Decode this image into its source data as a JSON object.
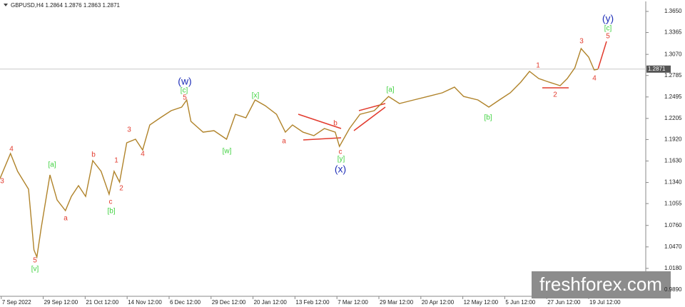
{
  "chart_data": {
    "type": "line",
    "title": "GBPUSD,H4 1.2864 1.2876 1.2863 1.2871",
    "x": [
      -0.03,
      0.22,
      0.39,
      0.65,
      0.78,
      0.85,
      0.95,
      1.16,
      1.33,
      1.53,
      1.67,
      1.84,
      2.01,
      2.18,
      2.38,
      2.57,
      2.69,
      2.82,
      2.99,
      3.2,
      3.37,
      3.54,
      3.79,
      4.05,
      4.3,
      4.42,
      4.52,
      4.81,
      5.07,
      5.37,
      5.58,
      5.83,
      6.05,
      6.29,
      6.56,
      6.77,
      6.94,
      7.19,
      7.45,
      7.7,
      7.96,
      8.06,
      8.3,
      8.55,
      8.89,
      9.23,
      9.49,
      9.83,
      10.17,
      10.51,
      10.8,
      11.02,
      11.36,
      11.62,
      11.87,
      12.13,
      12.38,
      12.59,
      12.81,
      13.06,
      13.32,
      13.49,
      13.67,
      13.82,
      14.0,
      14.13,
      14.22
    ],
    "values": [
      1.1393,
      1.1731,
      1.149,
      1.1249,
      1.0429,
      1.0333,
      1.0718,
      1.1442,
      1.1104,
      1.096,
      1.1152,
      1.1297,
      1.1152,
      1.1635,
      1.149,
      1.1181,
      1.149,
      1.1345,
      1.1876,
      1.1924,
      1.1779,
      1.2117,
      1.2213,
      1.231,
      1.2358,
      1.2454,
      1.2165,
      1.202,
      1.204,
      1.1924,
      1.2261,
      1.2213,
      1.2454,
      1.2377,
      1.2261,
      1.202,
      1.2117,
      1.202,
      1.1972,
      1.2069,
      1.202,
      1.1827,
      1.2069,
      1.2261,
      1.231,
      1.2502,
      1.2406,
      1.2454,
      1.2502,
      1.2551,
      1.2628,
      1.2502,
      1.2454,
      1.2358,
      1.2454,
      1.2551,
      1.2695,
      1.284,
      1.2744,
      1.2695,
      1.2647,
      1.2744,
      1.2888,
      1.3149,
      1.3033,
      1.2859,
      1.2869
    ],
    "color": "#b0832a",
    "xlim": [
      -0.03,
      15.36
    ],
    "ylim": [
      0.9803,
      1.3785
    ],
    "xticks": [
      {
        "value": 0,
        "label": "7 Sep 2022"
      },
      {
        "value": 1,
        "label": "29 Sep 12:00"
      },
      {
        "value": 2,
        "label": "21 Oct 12:00"
      },
      {
        "value": 3,
        "label": "14 Nov 12:00"
      },
      {
        "value": 4,
        "label": "6 Dec 12:00"
      },
      {
        "value": 5,
        "label": "29 Dec 12:00"
      },
      {
        "value": 6,
        "label": "20 Jan 12:00"
      },
      {
        "value": 7,
        "label": "13 Feb 12:00"
      },
      {
        "value": 8,
        "label": "7 Mar 12:00"
      },
      {
        "value": 9,
        "label": "29 Mar 12:00"
      },
      {
        "value": 10,
        "label": "20 Apr 12:00"
      },
      {
        "value": 11,
        "label": "12 May 12:00"
      },
      {
        "value": 12,
        "label": "5 Jun 12:00"
      },
      {
        "value": 13,
        "label": "27 Jun 12:00"
      },
      {
        "value": 14,
        "label": "19 Jul 12:00"
      }
    ],
    "yticks": [
      {
        "value": 1.365,
        "label": "1.3650"
      },
      1.3365,
      {
        "value": 1.307,
        "label": "1.3070"
      },
      1.2785,
      1.2495,
      1.2205,
      {
        "value": 1.192,
        "label": "1.1920"
      },
      {
        "value": 1.163,
        "label": "1.1630"
      },
      {
        "value": 1.134,
        "label": "1.1340"
      },
      1.1055,
      {
        "value": 1.076,
        "label": "1.0760"
      },
      {
        "value": 1.047,
        "label": "1.0470"
      },
      {
        "value": 1.018,
        "label": "1.0180"
      },
      {
        "value": 0.989,
        "label": "0.9890"
      }
    ],
    "last_price": 1.2871,
    "annotations": [
      "4",
      "3",
      "[a]",
      "a",
      "5",
      "[v]",
      "b",
      "1",
      "c",
      "2",
      "[b]",
      "3",
      "4",
      "(w)",
      "[c]",
      "5",
      "[x]",
      "[w]",
      "a",
      "b",
      "c",
      "[y]",
      "(x)",
      "[a]",
      "[b]",
      "1",
      "2",
      "3",
      "4",
      "(y)",
      "[c]",
      "5"
    ],
    "watermark": "freshforex.com"
  }
}
